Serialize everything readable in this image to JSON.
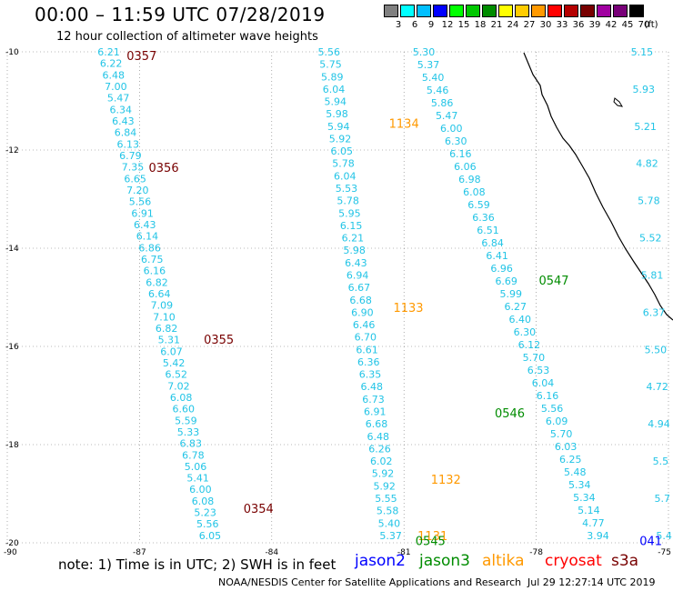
{
  "header": {
    "title": "00:00 – 11:59 UTC 07/28/2019",
    "subtitle": "12 hour collection of altimeter wave heights"
  },
  "legend": {
    "unit": "(ft)",
    "bins": [
      {
        "color": "#808080",
        "label": "3"
      },
      {
        "color": "#00ffff",
        "label": "6"
      },
      {
        "color": "#00bfff",
        "label": "9"
      },
      {
        "color": "#0000ff",
        "label": "12"
      },
      {
        "color": "#00ff00",
        "label": "15"
      },
      {
        "color": "#00c800",
        "label": "18"
      },
      {
        "color": "#008c00",
        "label": "21"
      },
      {
        "color": "#ffff00",
        "label": "24"
      },
      {
        "color": "#ffcc00",
        "label": "27"
      },
      {
        "color": "#ff9900",
        "label": "30"
      },
      {
        "color": "#ff0000",
        "label": "33"
      },
      {
        "color": "#b40000",
        "label": "36"
      },
      {
        "color": "#780000",
        "label": "39"
      },
      {
        "color": "#a000a0",
        "label": "42"
      },
      {
        "color": "#780078",
        "label": "45"
      },
      {
        "color": "#000000",
        "label": "70"
      }
    ]
  },
  "axes": {
    "lon_range": [
      -90,
      -75
    ],
    "lat_range": [
      -20,
      -10
    ],
    "lon_ticks": [
      "-90",
      "-87",
      "-84",
      "-81",
      "-78",
      "-75"
    ],
    "lat_ticks": [
      "-10",
      "-12",
      "-14",
      "-16",
      "-18",
      "-20"
    ],
    "grid": "dotted"
  },
  "colors": {
    "swh": "#22c4e6",
    "jason2": "#0000ff",
    "jason3": "#008c00",
    "altika": "#ff9900",
    "cryosat": "#ff0000",
    "s3a": "#780000",
    "grid": "#777777"
  },
  "tracks": [
    {
      "lon_start": -87.7,
      "lon_end": -85.4,
      "values": [
        "6.21",
        "6.22",
        "6.48",
        "7.00",
        "5.47",
        "6.34",
        "6.43",
        "6.84",
        "6.13",
        "6.79",
        "7.35",
        "6.65",
        "7.20",
        "5.56",
        "6.91",
        "6.43",
        "6.14",
        "6.86",
        "6.75",
        "6.16",
        "6.82",
        "6.64",
        "7.09",
        "7.10",
        "6.82",
        "5.31",
        "6.07",
        "5.42",
        "6.52",
        "7.02",
        "6.08",
        "6.60",
        "5.59",
        "5.33",
        "6.83",
        "6.78",
        "5.06",
        "5.41",
        "6.00",
        "6.08",
        "5.23",
        "5.56",
        "6.05"
      ]
    },
    {
      "lon_start": -82.7,
      "lon_end": -81.3,
      "values": [
        "5.56",
        "5.75",
        "5.89",
        "6.04",
        "5.94",
        "5.98",
        "5.94",
        "5.92",
        "6.05",
        "5.78",
        "6.04",
        "5.53",
        "5.78",
        "5.95",
        "6.15",
        "6.21",
        "5.98",
        "6.43",
        "6.94",
        "6.67",
        "6.68",
        "6.90",
        "6.46",
        "6.70",
        "6.61",
        "6.36",
        "6.35",
        "6.48",
        "6.73",
        "6.91",
        "6.68",
        "6.48",
        "6.26",
        "6.02",
        "5.92",
        "5.92",
        "5.55",
        "5.58",
        "5.40",
        "5.37"
      ]
    },
    {
      "lon_start": -80.55,
      "lon_end": -76.6,
      "values": [
        "5.30",
        "5.37",
        "5.40",
        "5.46",
        "5.86",
        "5.47",
        "6.00",
        "6.30",
        "6.16",
        "6.06",
        "6.98",
        "6.08",
        "6.59",
        "6.36",
        "6.51",
        "6.84",
        "6.41",
        "6.96",
        "6.69",
        "5.99",
        "6.27",
        "6.40",
        "6.30",
        "6.12",
        "5.70",
        "6.53",
        "6.04",
        "6.16",
        "5.56",
        "6.09",
        "5.70",
        "6.03",
        "6.25",
        "5.48",
        "5.34",
        "5.34",
        "5.14",
        "4.77",
        "3.94"
      ]
    },
    {
      "lon_start": -75.6,
      "lon_end": -75.1,
      "values": [
        "5.15",
        "5.93",
        "5.21",
        "4.82",
        "5.78",
        "5.52",
        "5.81",
        "6.37",
        "5.50",
        "4.72",
        "4.94",
        "5.5",
        "5.7",
        "5.4"
      ]
    }
  ],
  "passes": [
    {
      "label": "0357",
      "sat": "s3a",
      "lon": -86.95,
      "lat": -10.07
    },
    {
      "label": "0356",
      "sat": "s3a",
      "lon": -86.45,
      "lat": -12.35
    },
    {
      "label": "0355",
      "sat": "s3a",
      "lon": -85.2,
      "lat": -15.85
    },
    {
      "label": "0354",
      "sat": "s3a",
      "lon": -84.3,
      "lat": -19.3
    },
    {
      "label": "1134",
      "sat": "altika",
      "lon": -81.0,
      "lat": -11.45
    },
    {
      "label": "1133",
      "sat": "altika",
      "lon": -80.9,
      "lat": -15.2
    },
    {
      "label": "1132",
      "sat": "altika",
      "lon": -80.05,
      "lat": -18.7
    },
    {
      "label": "1131",
      "sat": "altika",
      "lon": -80.35,
      "lat": -19.85
    },
    {
      "label": "0547",
      "sat": "jason3",
      "lon": -77.6,
      "lat": -14.65
    },
    {
      "label": "0546",
      "sat": "jason3",
      "lon": -78.6,
      "lat": -17.35
    },
    {
      "label": "0545",
      "sat": "jason3",
      "lon": -80.4,
      "lat": -19.95
    },
    {
      "label": "041",
      "sat": "jason2",
      "lon": -75.4,
      "lat": -19.95
    }
  ],
  "footer": {
    "note": "note: 1) Time is in UTC; 2) SWH is in feet",
    "satellites": [
      {
        "name": "jason2",
        "key": "jason2"
      },
      {
        "name": "jason3",
        "key": "jason3"
      },
      {
        "name": "altika",
        "key": "altika"
      },
      {
        "name": "cryosat",
        "key": "cryosat"
      },
      {
        "name": "s3a",
        "key": "s3a"
      }
    ],
    "credit": "NOAA/NESDIS Center for Satellite Applications and Research",
    "timestamp": "Jul 29 12:27:14 UTC 2019"
  }
}
